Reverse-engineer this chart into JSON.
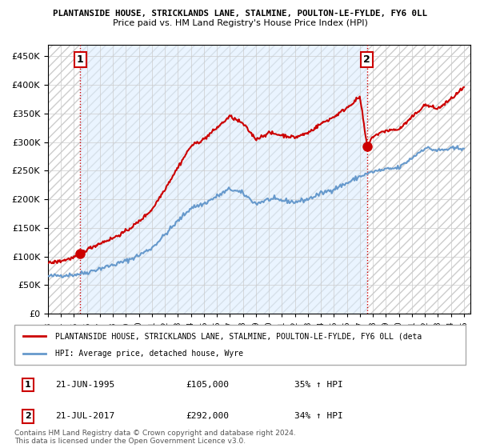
{
  "title1": "PLANTANSIDE HOUSE, STRICKLANDS LANE, STALMINE, POULTON-LE-FYLDE, FY6 0LL",
  "title2": "Price paid vs. HM Land Registry's House Price Index (HPI)",
  "legend_line1": "PLANTANSIDE HOUSE, STRICKLANDS LANE, STALMINE, POULTON-LE-FYLDE, FY6 0LL (deta",
  "legend_line2": "HPI: Average price, detached house, Wyre",
  "annotation1": {
    "num": "1",
    "date": "21-JUN-1995",
    "price": "£105,000",
    "change": "35% ↑ HPI",
    "x": 1995.47
  },
  "annotation2": {
    "num": "2",
    "date": "21-JUL-2017",
    "price": "£292,000",
    "change": "34% ↑ HPI",
    "x": 2017.55
  },
  "point1_y": 105000,
  "point2_y": 292000,
  "footer1": "Contains HM Land Registry data © Crown copyright and database right 2024.",
  "footer2": "This data is licensed under the Open Government Licence v3.0.",
  "red_color": "#cc0000",
  "blue_color": "#6699cc",
  "background_plot": "#ffffff",
  "background_fig": "#ffffff",
  "grid_color": "#cccccc",
  "ylim": [
    0,
    470000
  ],
  "xlim": [
    1993,
    2025.5
  ],
  "yticks": [
    0,
    50000,
    100000,
    150000,
    200000,
    250000,
    300000,
    350000,
    400000,
    450000
  ],
  "xticks": [
    1993,
    1994,
    1995,
    1996,
    1997,
    1998,
    1999,
    2000,
    2001,
    2002,
    2003,
    2004,
    2005,
    2006,
    2007,
    2008,
    2009,
    2010,
    2011,
    2012,
    2013,
    2014,
    2015,
    2016,
    2017,
    2018,
    2019,
    2020,
    2021,
    2022,
    2023,
    2024,
    2025
  ]
}
